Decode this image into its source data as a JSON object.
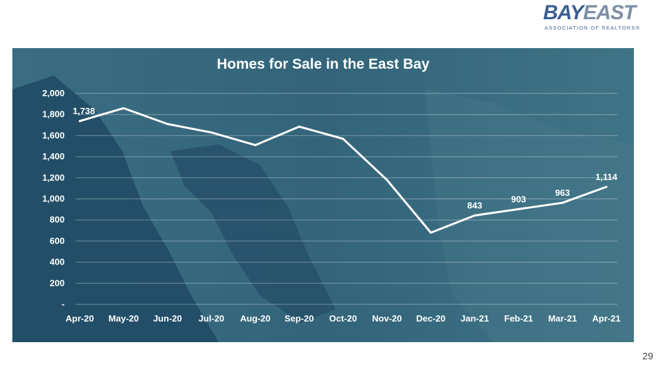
{
  "brand": {
    "logo_text_bay": "BAY",
    "logo_text_east": "EAST",
    "logo_subtitle": "ASSOCIATION OF REALTORS®",
    "primary_color": "#3b5f93",
    "secondary_color": "#7d8fa6"
  },
  "page_number": "29",
  "chart_data": {
    "type": "line",
    "title": "Homes for Sale in the East Bay",
    "xlabel": "",
    "ylabel": "",
    "categories": [
      "Apr-20",
      "May-20",
      "Jun-20",
      "Jul-20",
      "Aug-20",
      "Sep-20",
      "Oct-20",
      "Nov-20",
      "Dec-20",
      "Jan-21",
      "Feb-21",
      "Mar-21",
      "Apr-21"
    ],
    "series": [
      {
        "values": [
          1738,
          1860,
          1710,
          1630,
          1510,
          1685,
          1570,
          1180,
          680,
          843,
          903,
          963,
          1114
        ],
        "color": "#ffffff"
      }
    ],
    "data_labels": [
      {
        "index": 0,
        "text": "1,738"
      },
      {
        "index": 9,
        "text": "843"
      },
      {
        "index": 10,
        "text": "903"
      },
      {
        "index": 11,
        "text": "963"
      },
      {
        "index": 12,
        "text": "1,114"
      }
    ],
    "ylim": [
      0,
      2000
    ],
    "yticks": [
      0,
      200,
      400,
      600,
      800,
      1000,
      1200,
      1400,
      1600,
      1800,
      2000
    ],
    "ytick_labels": [
      "-",
      "200",
      "400",
      "600",
      "800",
      "1,000",
      "1,200",
      "1,400",
      "1,600",
      "1,800",
      "2,000"
    ],
    "grid": true,
    "legend": "none",
    "background": "map"
  }
}
